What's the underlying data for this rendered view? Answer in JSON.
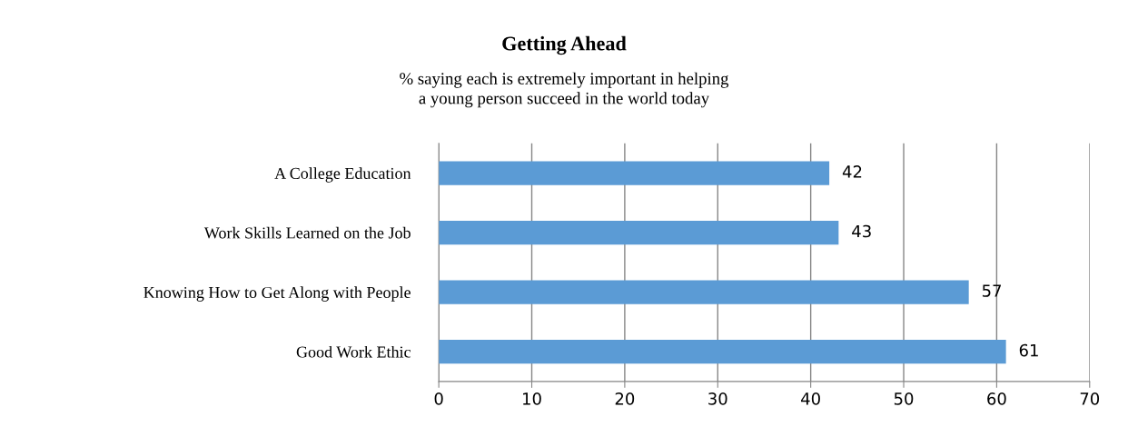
{
  "chart_data": {
    "type": "bar",
    "orientation": "horizontal",
    "title": "Getting Ahead",
    "subtitle": "% saying each is extremely important in helping\na young person succeed in the world today",
    "categories": [
      "A College Education",
      "Work Skills Learned on the Job",
      "Knowing How to Get Along with People",
      "Good Work Ethic"
    ],
    "values": [
      42,
      43,
      57,
      61
    ],
    "color": "#5b9bd5",
    "xlim": [
      0,
      70
    ],
    "xticks": [
      0,
      10,
      20,
      30,
      40,
      50,
      60,
      70
    ],
    "grid": "x",
    "data_labels": true,
    "legend": false
  }
}
